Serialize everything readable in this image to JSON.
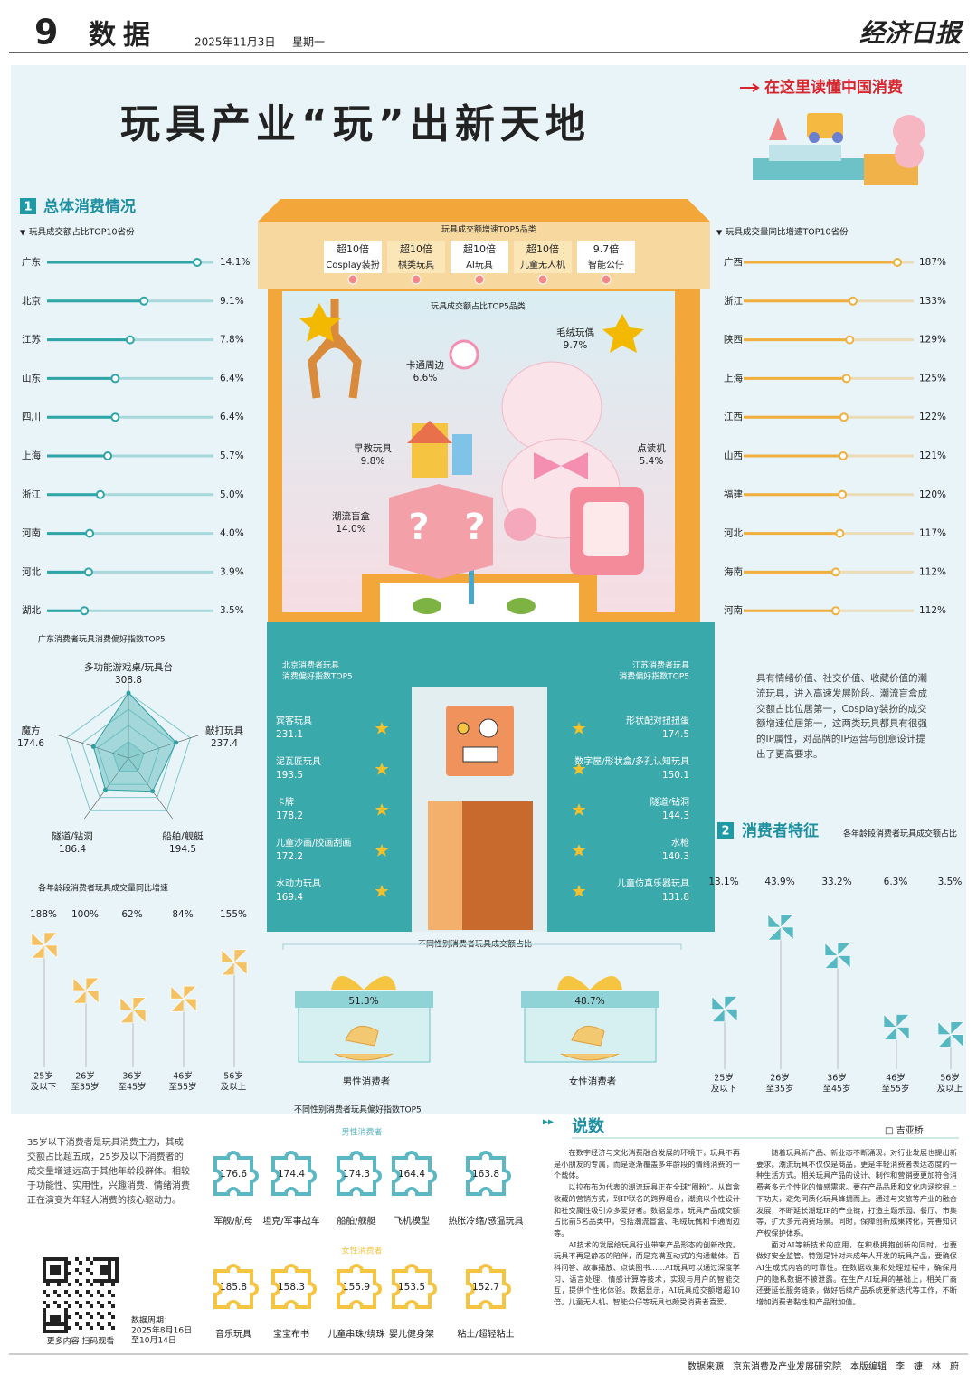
{
  "header": {
    "page_number": "9",
    "section": "数据",
    "date": "2025年11月3日",
    "weekday": "星期一",
    "paper": "经济日报"
  },
  "title": "玩具产业“玩”出新天地",
  "badge": "在这里读懂中国消费",
  "section1": {
    "number": "1",
    "title": "总体消费情况"
  },
  "section2": {
    "number": "2",
    "title": "消费者特征"
  },
  "province_share": {
    "title": "玩具成交额占比TOP10省份",
    "categories": [
      "广东",
      "北京",
      "江苏",
      "山东",
      "四川",
      "上海",
      "浙江",
      "河南",
      "河北",
      "湖北"
    ],
    "values": [
      14.1,
      9.1,
      7.8,
      6.4,
      6.4,
      5.7,
      5.0,
      4.0,
      3.9,
      3.5
    ],
    "value_labels": [
      "14.1%",
      "9.1%",
      "7.8%",
      "6.4%",
      "6.4%",
      "5.7%",
      "5.0%",
      "4.0%",
      "3.9%",
      "3.5%"
    ]
  },
  "province_growth": {
    "title": "玩具成交量同比增速TOP10省份",
    "categories": [
      "广西",
      "浙江",
      "陕西",
      "上海",
      "江西",
      "山西",
      "福建",
      "河北",
      "海南",
      "河南"
    ],
    "values": [
      187,
      133,
      129,
      125,
      122,
      121,
      120,
      117,
      112,
      112
    ],
    "value_labels": [
      "187%",
      "133%",
      "129%",
      "125%",
      "122%",
      "121%",
      "120%",
      "117%",
      "112%",
      "112%"
    ]
  },
  "category_growth": {
    "title": "玩具成交额增速TOP5品类",
    "items": [
      {
        "value": "超10倍",
        "name": "Cosplay装扮"
      },
      {
        "value": "超10倍",
        "name": "棋类玩具"
      },
      {
        "value": "超10倍",
        "name": "AI玩具"
      },
      {
        "value": "超10倍",
        "name": "儿童无人机"
      },
      {
        "value": "9.7倍",
        "name": "智能公仔"
      }
    ]
  },
  "category_share": {
    "title": "玩具成交额占比TOP5品类",
    "categories": [
      "毛绒玩偶",
      "卡通周边",
      "早教玩具",
      "点读机",
      "潮流盲盒"
    ],
    "values": [
      9.7,
      6.6,
      9.8,
      5.4,
      14.0
    ],
    "value_labels": [
      "9.7%",
      "6.6%",
      "9.8%",
      "5.4%",
      "14.0%"
    ]
  },
  "guangdong_pref": {
    "title": "广东消费者玩具消费偏好指数TOP5",
    "categories": [
      "多功能游戏桌/玩具台",
      "敲打玩具",
      "船舶/舰艇",
      "隧道/钻洞",
      "魔方"
    ],
    "values": [
      308.8,
      237.4,
      194.5,
      186.4,
      174.6
    ]
  },
  "beijing_pref": {
    "title": [
      "北京消费者玩具",
      "消费偏好指数TOP5"
    ],
    "categories": [
      "宾客玩具",
      "泥瓦匠玩具",
      "卡牌",
      "儿童沙画/胶画刮画",
      "水动力玩具"
    ],
    "values": [
      231.1,
      193.5,
      178.2,
      172.2,
      169.4
    ]
  },
  "jiangsu_pref": {
    "title": [
      "江苏消费者玩具",
      "消费偏好指数TOP5"
    ],
    "categories": [
      "形状配对扭扭蛋",
      "数字屋/形状盒/多孔认知玩具",
      "隧道/钻洞",
      "水枪",
      "儿童仿真乐器玩具"
    ],
    "values": [
      174.5,
      150.1,
      144.3,
      140.3,
      131.8
    ]
  },
  "note1": "具有情绪价值、社交价值、收藏价值的潮流玩具，进入高速发展阶段。潮流盲盒成交额占比位居第一，Cosplay装扮的成交额增速位居第一，这两类玩具都具有很强的IP属性，对品牌的IP运营与创意设计提出了更高要求。",
  "age_volume_growth": {
    "title": "各年龄段消费者玩具成交量同比增速",
    "categories": [
      [
        "25岁",
        "及以下"
      ],
      [
        "26岁",
        "至35岁"
      ],
      [
        "36岁",
        "至45岁"
      ],
      [
        "46岁",
        "至55岁"
      ],
      [
        "56岁",
        "及以上"
      ]
    ],
    "values": [
      188,
      100,
      62,
      84,
      155
    ],
    "value_labels": [
      "188%",
      "100%",
      "62%",
      "84%",
      "155%"
    ]
  },
  "age_share": {
    "title": "各年龄段消费者玩具成交额占比",
    "categories": [
      [
        "25岁",
        "及以下"
      ],
      [
        "26岁",
        "至35岁"
      ],
      [
        "36岁",
        "至45岁"
      ],
      [
        "46岁",
        "至55岁"
      ],
      [
        "56岁",
        "及以上"
      ]
    ],
    "values": [
      13.1,
      43.9,
      33.2,
      6.3,
      3.5
    ],
    "value_labels": [
      "13.1%",
      "43.9%",
      "33.2%",
      "6.3%",
      "3.5%"
    ]
  },
  "gender_share": {
    "title": "不同性别消费者玩具成交额占比",
    "categories": [
      "男性消费者",
      "女性消费者"
    ],
    "values": [
      51.3,
      48.7
    ],
    "value_labels": [
      "51.3%",
      "48.7%"
    ]
  },
  "gender_pref": {
    "title": "不同性别消费者玩具偏好指数TOP5",
    "groups": [
      {
        "name": "男性消费者",
        "categories": [
          "军舰/航母",
          "坦克/军事战车",
          "船舶/舰艇",
          "飞机模型",
          "热胀冷缩/感温玩具"
        ],
        "values": [
          176.6,
          174.4,
          174.3,
          164.4,
          163.8
        ]
      },
      {
        "name": "女性消费者",
        "categories": [
          "音乐玩具",
          "宝宝布书",
          "儿童串珠/绕珠",
          "婴儿健身架",
          "粘土/超轻粘土"
        ],
        "values": [
          185.8,
          158.3,
          155.9,
          153.5,
          152.7
        ]
      }
    ]
  },
  "note2": "35岁以下消费者是玩具消费主力，其成交额占比超五成，25岁及以下消费者的成交量增速远高于其他年龄段群体。相较于功能性、实用性，兴趣消费、情绪消费正在演变为年轻人消费的核心驱动力。",
  "qr_caption": "更多内容 扫码观看",
  "data_period": [
    "数据周期：",
    "2025年8月16日",
    "至10月14日"
  ],
  "article": {
    "title": "说数",
    "author": "□ 吉亚桥",
    "paragraphs": [
      "在数字经济与文化消费融合发展的环境下，玩具不再是小朋友的专属，而是逐渐覆盖多年龄段的情绪消费的一个载体。",
      "以拉布布为代表的潮流玩具正在全球“圈粉”。从盲盒收藏的营销方式，到IP联名的跨界组合，潮流以个性设计和社交属性吸引众多爱好者。数据显示，玩具产品成交额占比前5名品类中，包括潮流盲盒、毛绒玩偶和卡通周边等。",
      "AI技术的发展给玩具行业带来产品形态的创新改变。玩具不再是静态的陪伴，而是充满互动式的沟通载体。百科问答、故事播放、点读图书……AI玩具可以通过深度学习、语言处理、情感计算等技术，实现与用户的智能交互，提供个性化体验。数据显示，AI玩具成交额增超10倍。儿童无人机、智能公仔等玩具也颇受消费者喜爱。",
      "随着玩具新产品、新业态不断涌现，对行业发展也提出新要求。潮流玩具不仅仅是商品，更是年轻消费者表达态度的一种生活方式。相关玩具产品的设计、制作和营销要更加符合消费者多元个性化的情感需求。要在产品品质和文化内涵挖掘上下功夫，避免同质化玩具蜂拥而上。通过与文旅等产业的融合发展，不断延长潮玩IP的产业链，打造主题乐园、餐厅、市集等，扩大多元消费场景。同时，保障创新成果转化，完善知识产权保护体系。",
      "面对AI等新技术的应用，在积极拥抱创新的同时，也要做好安全监管。特别是针对未成年人开发的玩具产品，要确保AI生成式内容的可靠性。在数据收集和处理过程中，确保用户的隐私数据不被泄露。在生产AI玩具的基础上，相关厂商还要延长服务链条，做好后续产品系统更新迭代等工作，不断增加消费者黏性和产品附加值。"
    ]
  },
  "footer": "数据来源　京东消费及产业发展研究院　本版编辑　李　婕　林　蔚"
}
